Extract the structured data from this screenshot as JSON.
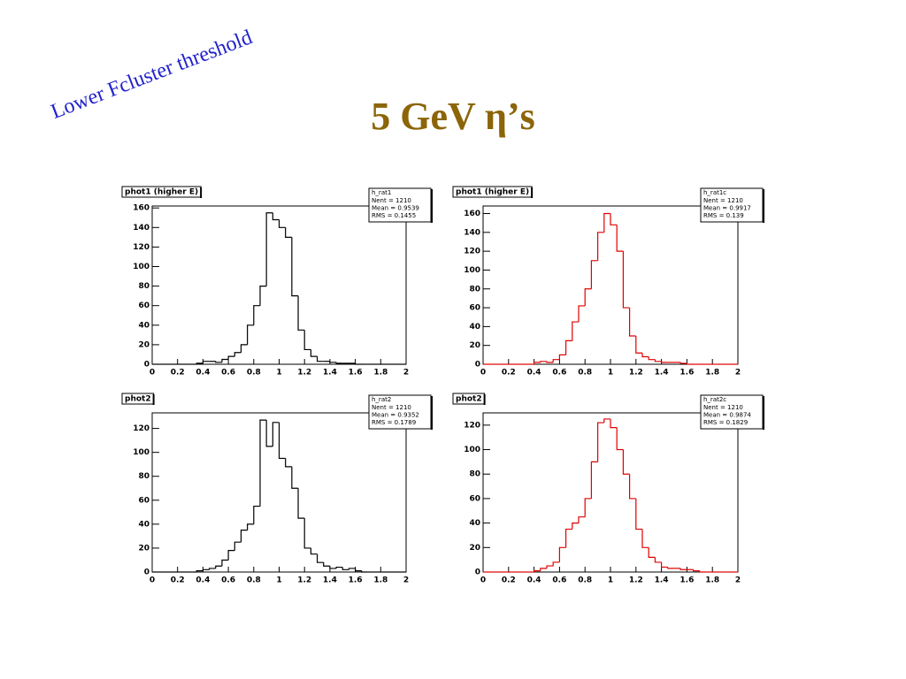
{
  "slide": {
    "title": "5 GeV η’s",
    "annotation": "Lower Fcluster threshold"
  },
  "chart_data": [
    {
      "type": "histogram",
      "title": "phot1 (higher E)",
      "stats_name": "h_rat1",
      "stats": [
        "Nent = 1210",
        "Mean = 0.9539",
        "RMS = 0.1455"
      ],
      "color": "#000000",
      "bins": [
        0,
        0.05,
        0.1,
        0.15,
        0.2,
        0.25,
        0.3,
        0.35,
        0.4,
        0.45,
        0.5,
        0.55,
        0.6,
        0.65,
        0.7,
        0.75,
        0.8,
        0.85,
        0.9,
        0.95,
        1,
        1.05,
        1.1,
        1.15,
        1.2,
        1.25,
        1.3,
        1.35,
        1.4,
        1.45,
        1.5,
        1.55,
        1.6,
        1.65,
        1.7,
        1.75,
        1.8,
        1.85,
        1.9,
        1.95,
        2
      ],
      "values": [
        0,
        0,
        0,
        0,
        0,
        0,
        0,
        1,
        3,
        3,
        2,
        5,
        8,
        12,
        20,
        40,
        60,
        80,
        155,
        148,
        140,
        130,
        70,
        35,
        15,
        8,
        3,
        3,
        2,
        1,
        1,
        1,
        0,
        0,
        0,
        0,
        0,
        0,
        0,
        0
      ],
      "xlim": [
        0,
        2
      ],
      "xticks": [
        0,
        0.2,
        0.4,
        0.6,
        0.8,
        1,
        1.2,
        1.4,
        1.6,
        1.8,
        2
      ],
      "ylim": [
        0,
        162
      ],
      "yticks": [
        0,
        20,
        40,
        60,
        80,
        100,
        120,
        140,
        160
      ]
    },
    {
      "type": "histogram",
      "title": "phot1 (higher E)",
      "stats_name": "h_rat1c",
      "stats": [
        "Nent = 1210",
        "Mean = 0.9917",
        "RMS = 0.139"
      ],
      "color": "#e00000",
      "bins": [
        0,
        0.05,
        0.1,
        0.15,
        0.2,
        0.25,
        0.3,
        0.35,
        0.4,
        0.45,
        0.5,
        0.55,
        0.6,
        0.65,
        0.7,
        0.75,
        0.8,
        0.85,
        0.9,
        0.95,
        1,
        1.05,
        1.1,
        1.15,
        1.2,
        1.25,
        1.3,
        1.35,
        1.4,
        1.45,
        1.5,
        1.55,
        1.6,
        1.65,
        1.7,
        1.75,
        1.8,
        1.85,
        1.9,
        1.95,
        2
      ],
      "values": [
        0,
        0,
        0,
        0,
        0,
        0,
        0,
        0,
        2,
        3,
        2,
        5,
        10,
        25,
        45,
        62,
        80,
        110,
        140,
        160,
        148,
        120,
        60,
        30,
        12,
        8,
        5,
        3,
        2,
        2,
        2,
        1,
        0,
        0,
        0,
        0,
        0,
        0,
        0,
        0
      ],
      "xlim": [
        0,
        2
      ],
      "xticks": [
        0,
        0.2,
        0.4,
        0.6,
        0.8,
        1,
        1.2,
        1.4,
        1.6,
        1.8,
        2
      ],
      "ylim": [
        0,
        168
      ],
      "yticks": [
        0,
        20,
        40,
        60,
        80,
        100,
        120,
        140,
        160
      ]
    },
    {
      "type": "histogram",
      "title": "phot2",
      "stats_name": "h_rat2",
      "stats": [
        "Nent = 1210",
        "Mean = 0.9352",
        "RMS = 0.1789"
      ],
      "color": "#000000",
      "bins": [
        0,
        0.05,
        0.1,
        0.15,
        0.2,
        0.25,
        0.3,
        0.35,
        0.4,
        0.45,
        0.5,
        0.55,
        0.6,
        0.65,
        0.7,
        0.75,
        0.8,
        0.85,
        0.9,
        0.95,
        1,
        1.05,
        1.1,
        1.15,
        1.2,
        1.25,
        1.3,
        1.35,
        1.4,
        1.45,
        1.5,
        1.55,
        1.6,
        1.65,
        1.7,
        1.75,
        1.8,
        1.85,
        1.9,
        1.95,
        2
      ],
      "values": [
        0,
        0,
        0,
        0,
        0,
        0,
        0,
        1,
        2,
        3,
        5,
        10,
        18,
        25,
        35,
        40,
        55,
        127,
        105,
        125,
        95,
        88,
        70,
        45,
        20,
        15,
        8,
        5,
        3,
        4,
        2,
        3,
        1,
        0,
        0,
        0,
        0,
        0,
        0,
        0
      ],
      "xlim": [
        0,
        2
      ],
      "xticks": [
        0,
        0.2,
        0.4,
        0.6,
        0.8,
        1,
        1.2,
        1.4,
        1.6,
        1.8,
        2
      ],
      "ylim": [
        0,
        133
      ],
      "yticks": [
        0,
        20,
        40,
        60,
        80,
        100,
        120
      ]
    },
    {
      "type": "histogram",
      "title": "phot2",
      "stats_name": "h_rat2c",
      "stats": [
        "Nent = 1210",
        "Mean = 0.9874",
        "RMS = 0.1829"
      ],
      "color": "#e00000",
      "bins": [
        0,
        0.05,
        0.1,
        0.15,
        0.2,
        0.25,
        0.3,
        0.35,
        0.4,
        0.45,
        0.5,
        0.55,
        0.6,
        0.65,
        0.7,
        0.75,
        0.8,
        0.85,
        0.9,
        0.95,
        1,
        1.05,
        1.1,
        1.15,
        1.2,
        1.25,
        1.3,
        1.35,
        1.4,
        1.45,
        1.5,
        1.55,
        1.6,
        1.65,
        1.7,
        1.75,
        1.8,
        1.85,
        1.9,
        1.95,
        2
      ],
      "values": [
        0,
        0,
        0,
        0,
        0,
        0,
        0,
        0,
        1,
        3,
        5,
        8,
        20,
        35,
        40,
        45,
        60,
        90,
        122,
        125,
        118,
        100,
        80,
        60,
        35,
        20,
        12,
        8,
        4,
        3,
        3,
        2,
        2,
        1,
        0,
        0,
        0,
        0,
        0,
        0
      ],
      "xlim": [
        0,
        2
      ],
      "xticks": [
        0,
        0.2,
        0.4,
        0.6,
        0.8,
        1,
        1.2,
        1.4,
        1.6,
        1.8,
        2
      ],
      "ylim": [
        0,
        130
      ],
      "yticks": [
        0,
        20,
        40,
        60,
        80,
        100,
        120
      ]
    }
  ]
}
